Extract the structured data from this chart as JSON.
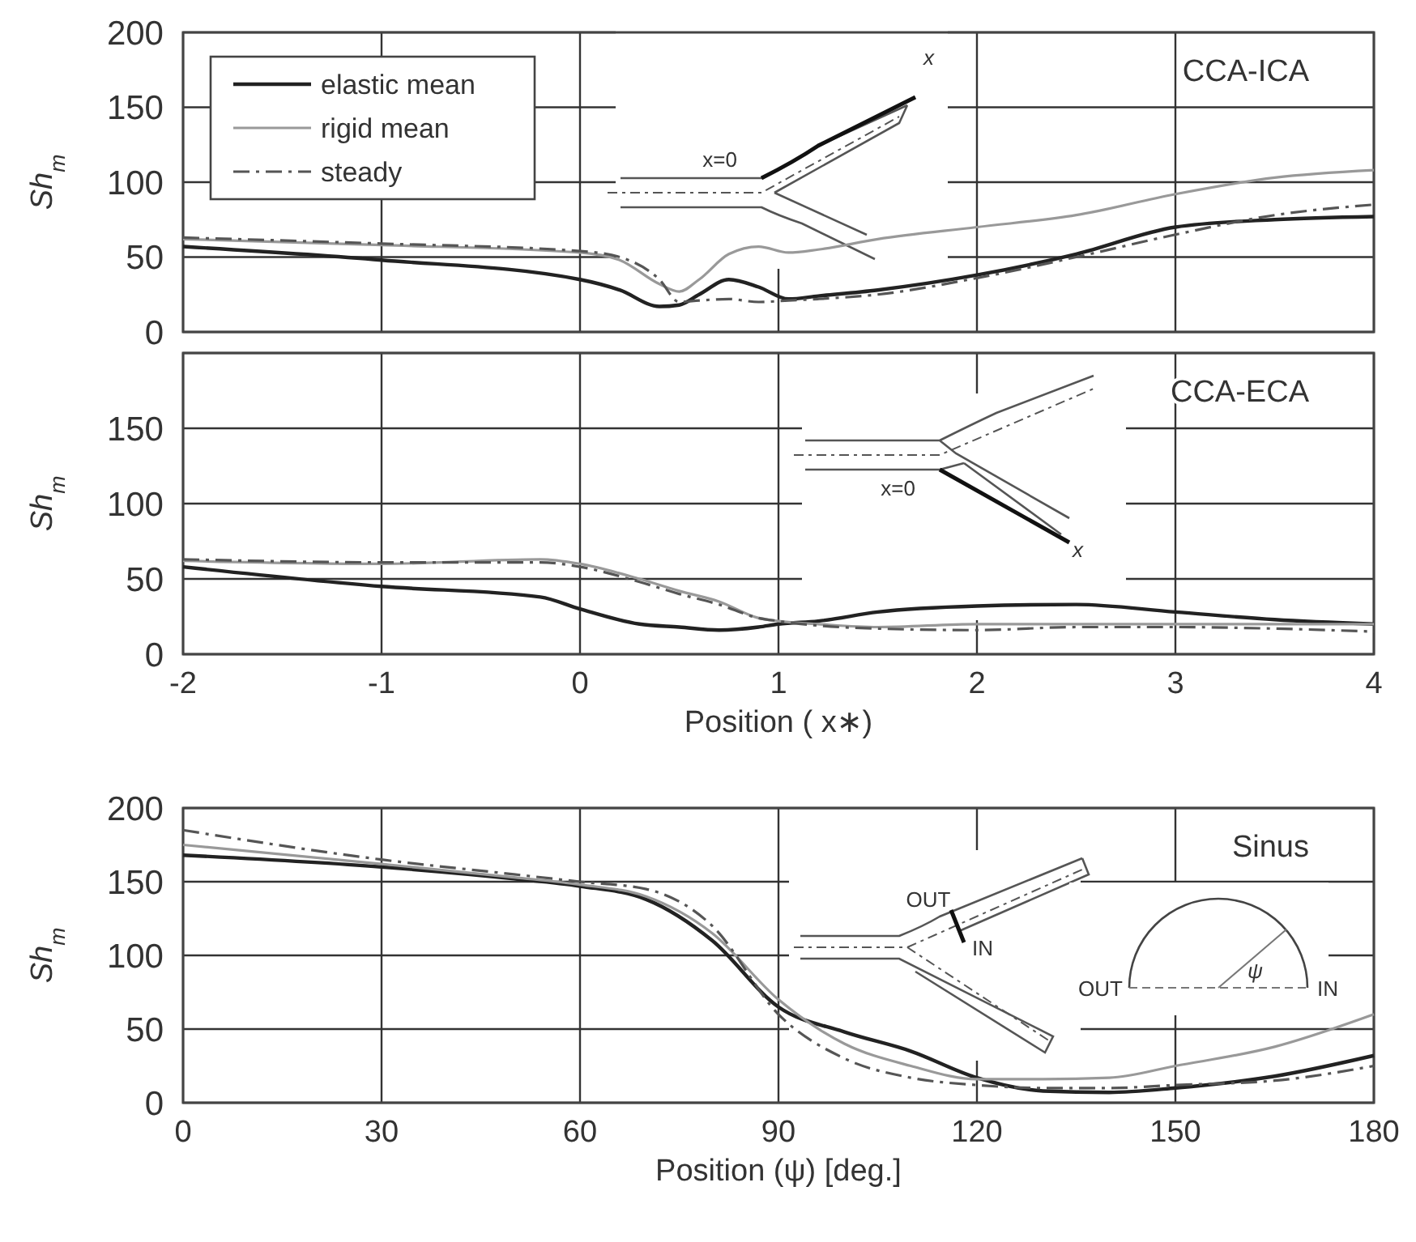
{
  "chart_data": [
    {
      "type": "line",
      "x": [
        -2,
        -1,
        0,
        0.2,
        0.4,
        0.5,
        0.6,
        0.75,
        0.9,
        1.05,
        1.2,
        1.5,
        2,
        2.5,
        3,
        3.5,
        4
      ],
      "ylabel": "Sh$_{m}$",
      "annotations": [
        "CCA-ICA",
        "x=0",
        "x"
      ],
      "ylim": [
        0,
        200
      ],
      "yticks": [
        0,
        50,
        100,
        150,
        200
      ],
      "xlim": [
        -2,
        4
      ],
      "xticks": [
        -2,
        -1,
        0,
        1,
        2,
        3,
        4
      ],
      "grid": true,
      "legend": "top left",
      "tick_labels": "y",
      "series": [
        {
          "name": "elastic mean",
          "color": "#222222",
          "line_style": "solid",
          "values": [
            57,
            48,
            35,
            28,
            17,
            18,
            25,
            35,
            30,
            22,
            24,
            28,
            38,
            52,
            70,
            75,
            77
          ]
        },
        {
          "name": "rigid mean",
          "color": "#999999",
          "line_style": "solid",
          "values": [
            62,
            58,
            53,
            48,
            32,
            27,
            35,
            52,
            57,
            53,
            55,
            62,
            70,
            78,
            92,
            103,
            108
          ]
        },
        {
          "name": "steady",
          "color": "#555555",
          "line_style": "dashed",
          "values": [
            63,
            59,
            54,
            50,
            35,
            20,
            21,
            22,
            20,
            21,
            22,
            25,
            36,
            50,
            65,
            78,
            85
          ]
        }
      ]
    },
    {
      "type": "line",
      "x": [
        -2,
        -1,
        -0.2,
        0,
        0.3,
        0.5,
        0.7,
        0.9,
        1,
        1.2,
        1.5,
        2,
        2.5,
        3,
        3.5,
        4
      ],
      "ylabel": "Sh$_{m}$",
      "xlabel": "Position ( x∗)",
      "annotations": [
        "CCA-ECA",
        "x=0",
        "x"
      ],
      "ylim": [
        0,
        200
      ],
      "yticks": [
        0,
        50,
        100,
        150,
        {
          "value": 200,
          "label": null
        }
      ],
      "xlim": [
        -2,
        4
      ],
      "xticks": [
        -2,
        -1,
        0,
        1,
        2,
        3,
        4
      ],
      "grid": true,
      "series": [
        {
          "color": "#222222",
          "line_style": "solid",
          "values": [
            58,
            45,
            38,
            30,
            20,
            18,
            16,
            18,
            20,
            22,
            28,
            32,
            33,
            28,
            23,
            20
          ]
        },
        {
          "color": "#999999",
          "line_style": "solid",
          "values": [
            62,
            60,
            63,
            60,
            50,
            42,
            35,
            24,
            22,
            20,
            18,
            20,
            20,
            20,
            20,
            20
          ]
        },
        {
          "color": "#555555",
          "line_style": "dashed",
          "values": [
            63,
            61,
            61,
            58,
            48,
            40,
            33,
            24,
            22,
            19,
            17,
            16,
            18,
            18,
            17,
            15
          ]
        }
      ]
    },
    {
      "type": "line",
      "x": [
        0,
        30,
        50,
        60,
        70,
        80,
        90,
        100,
        110,
        120,
        130,
        140,
        150,
        165,
        180
      ],
      "ylabel": "Sh$_{m}$",
      "xlabel": "Position (ψ)    [deg.]",
      "annotations": [
        "Sinus",
        "OUT",
        "IN",
        "OUT",
        "IN",
        "ψ"
      ],
      "ylim": [
        0,
        200
      ],
      "yticks": [
        0,
        50,
        100,
        150,
        200
      ],
      "xlim": [
        0,
        180
      ],
      "xticks": [
        0,
        30,
        60,
        90,
        120,
        150,
        180
      ],
      "grid": true,
      "series": [
        {
          "color": "#222222",
          "line_style": "solid",
          "values": [
            168,
            160,
            152,
            147,
            138,
            110,
            65,
            48,
            35,
            17,
            8,
            7,
            10,
            18,
            32
          ]
        },
        {
          "color": "#999999",
          "line_style": "solid",
          "values": [
            175,
            162,
            153,
            148,
            140,
            115,
            70,
            40,
            25,
            16,
            16,
            17,
            25,
            38,
            60
          ]
        },
        {
          "color": "#555555",
          "line_style": "dashed",
          "values": [
            185,
            165,
            155,
            150,
            145,
            120,
            60,
            30,
            17,
            12,
            10,
            10,
            12,
            15,
            25
          ]
        }
      ]
    }
  ]
}
